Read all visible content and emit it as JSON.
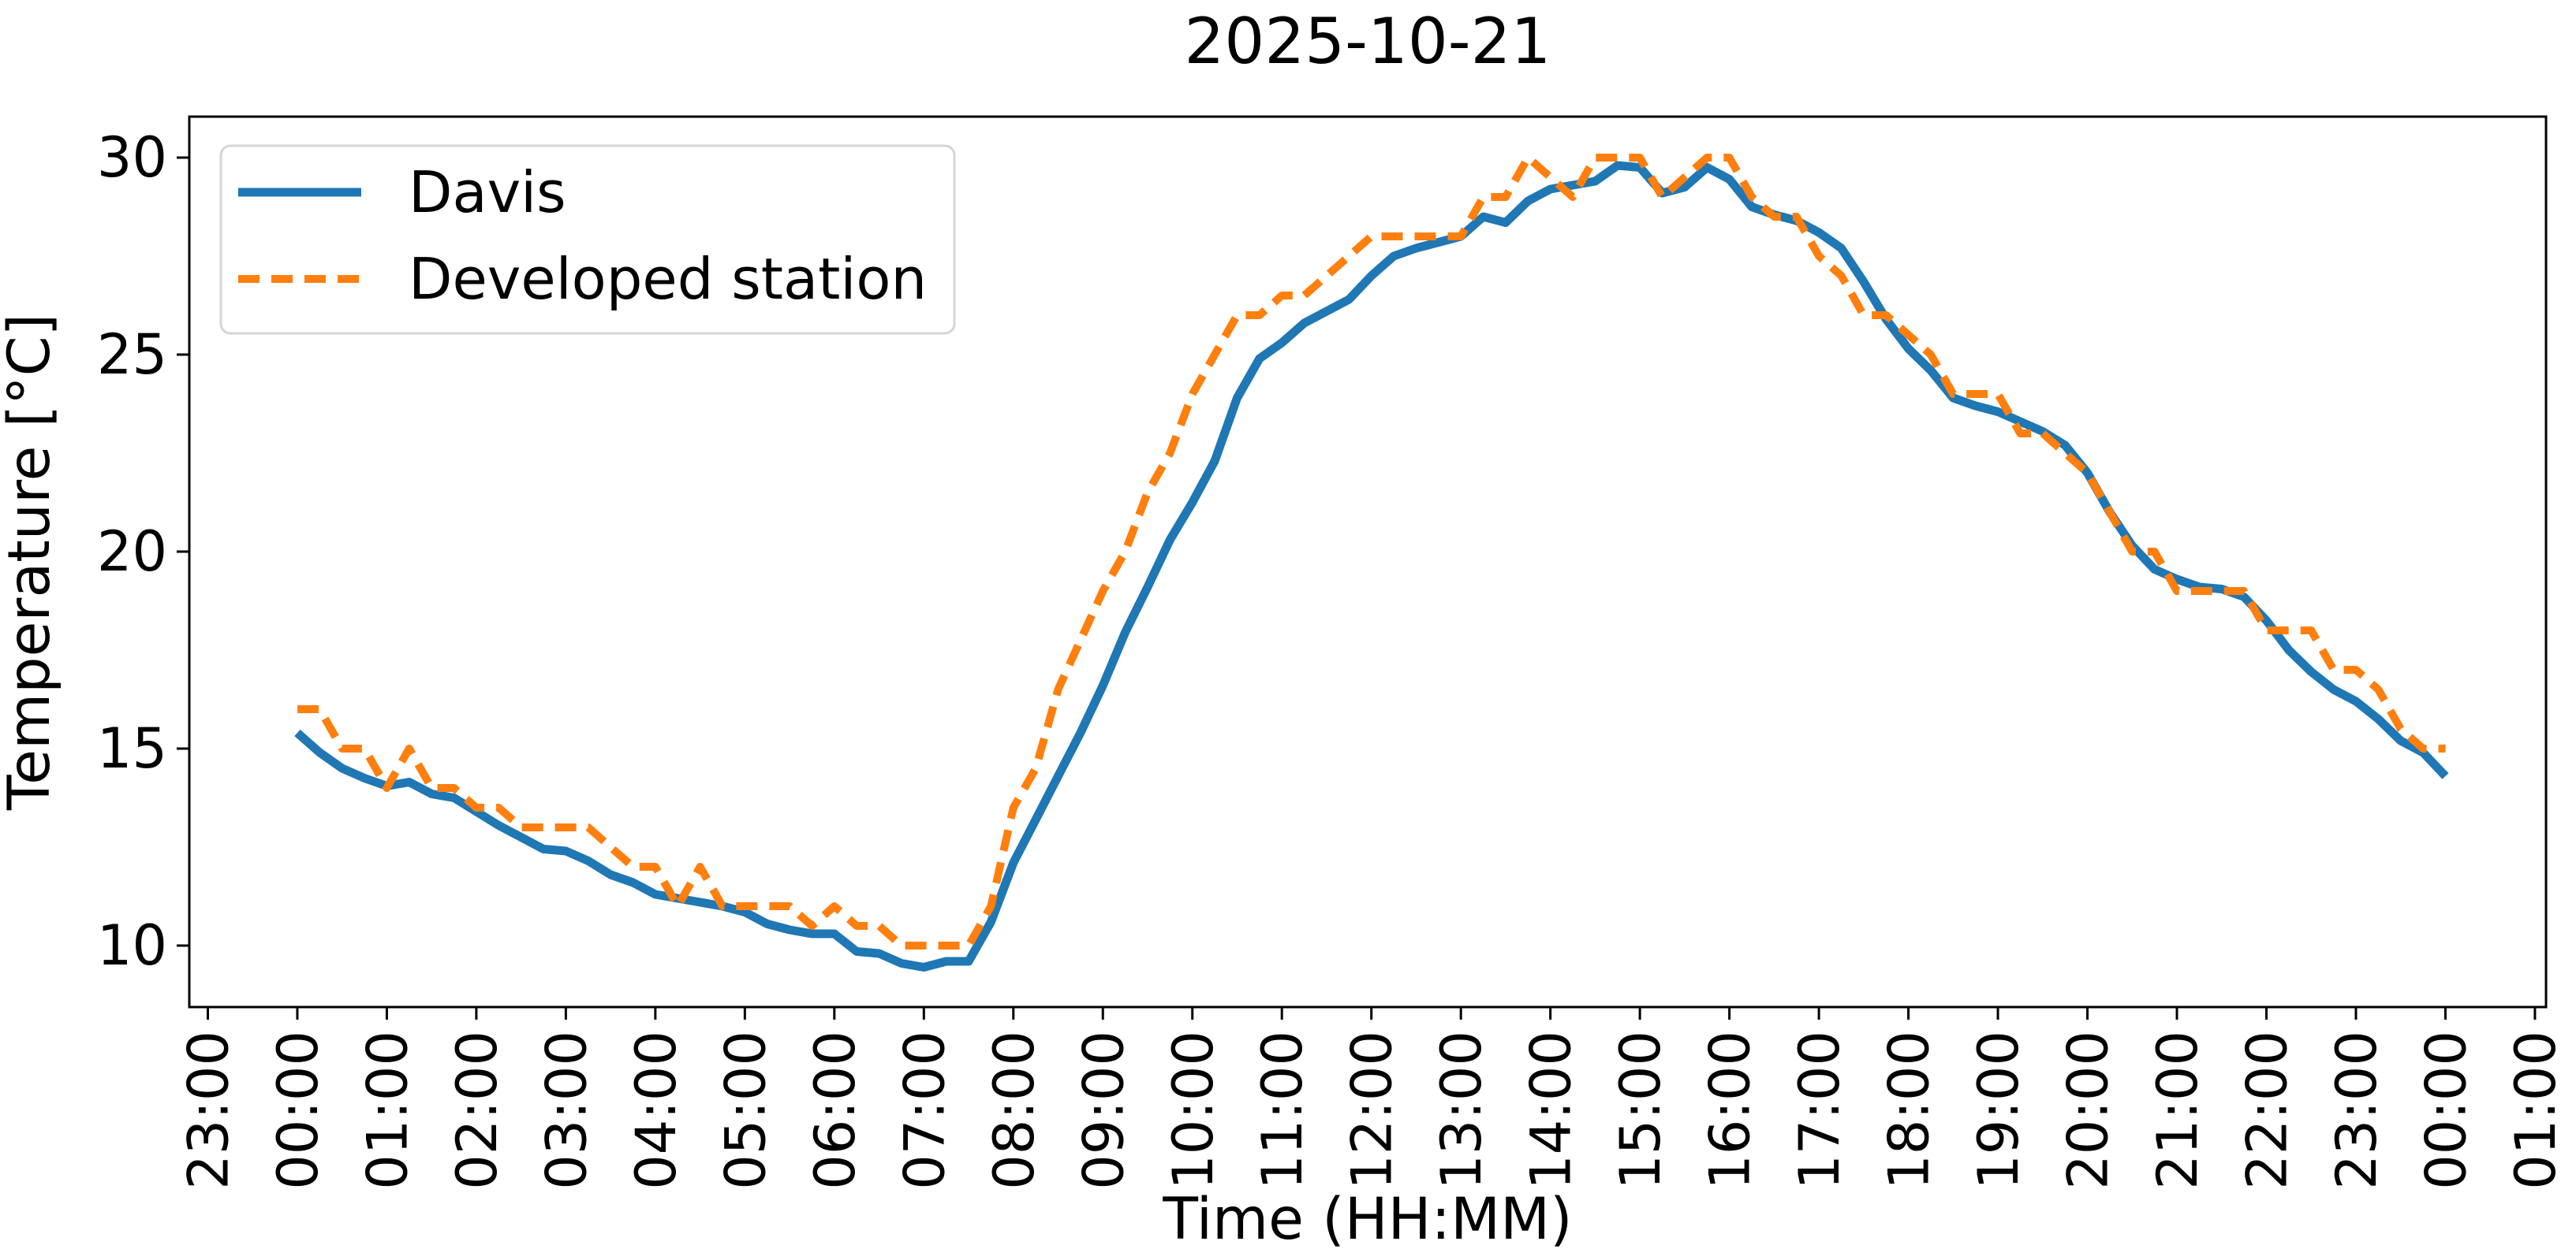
{
  "figure": {
    "title": "2025-10-21"
  },
  "chart_data": {
    "type": "line",
    "title": "2025-10-21",
    "xlabel": "Time (HH:MM)",
    "ylabel": "Temperature [°C]",
    "grid": false,
    "legend_position": "upper-left",
    "x_unit": "hours_since_midnight_00:00",
    "xlim": [
      -1.207,
      25.124
    ],
    "ylim": [
      8.44,
      31.04
    ],
    "y_ticks": [
      10,
      15,
      20,
      25,
      30
    ],
    "x_tick_hours": [
      -1,
      0,
      1,
      2,
      3,
      4,
      5,
      6,
      7,
      8,
      9,
      10,
      11,
      12,
      13,
      14,
      15,
      16,
      17,
      18,
      19,
      20,
      21,
      22,
      23,
      24,
      25
    ],
    "x_tick_labels": [
      "23:00",
      "00:00",
      "01:00",
      "02:00",
      "03:00",
      "04:00",
      "05:00",
      "06:00",
      "07:00",
      "08:00",
      "09:00",
      "10:00",
      "11:00",
      "12:00",
      "13:00",
      "14:00",
      "15:00",
      "16:00",
      "17:00",
      "18:00",
      "19:00",
      "20:00",
      "21:00",
      "22:00",
      "23:00",
      "00:00",
      "01:00"
    ],
    "series": [
      {
        "name": "Davis",
        "color": "#1f77b4",
        "style": "solid",
        "line_width": 11,
        "points": [
          [
            0,
            15.4
          ],
          [
            0.25,
            14.9
          ],
          [
            0.5,
            14.5
          ],
          [
            0.75,
            14.25
          ],
          [
            1,
            14.05
          ],
          [
            1.25,
            14.15
          ],
          [
            1.5,
            13.85
          ],
          [
            1.75,
            13.75
          ],
          [
            2,
            13.4
          ],
          [
            2.25,
            13.05
          ],
          [
            2.5,
            12.75
          ],
          [
            2.75,
            12.45
          ],
          [
            3,
            12.4
          ],
          [
            3.25,
            12.15
          ],
          [
            3.5,
            11.8
          ],
          [
            3.75,
            11.6
          ],
          [
            4,
            11.3
          ],
          [
            4.25,
            11.2
          ],
          [
            4.5,
            11.1
          ],
          [
            4.75,
            11.0
          ],
          [
            5,
            10.85
          ],
          [
            5.25,
            10.55
          ],
          [
            5.5,
            10.4
          ],
          [
            5.75,
            10.3
          ],
          [
            6,
            10.3
          ],
          [
            6.25,
            9.85
          ],
          [
            6.5,
            9.8
          ],
          [
            6.75,
            9.55
          ],
          [
            7,
            9.45
          ],
          [
            7.25,
            9.6
          ],
          [
            7.5,
            9.6
          ],
          [
            7.75,
            10.6
          ],
          [
            8,
            12.1
          ],
          [
            8.25,
            13.2
          ],
          [
            8.5,
            14.3
          ],
          [
            8.75,
            15.4
          ],
          [
            9,
            16.6
          ],
          [
            9.25,
            17.95
          ],
          [
            9.5,
            19.1
          ],
          [
            9.75,
            20.3
          ],
          [
            10,
            21.25
          ],
          [
            10.25,
            22.3
          ],
          [
            10.5,
            23.9
          ],
          [
            10.75,
            24.9
          ],
          [
            11,
            25.3
          ],
          [
            11.25,
            25.8
          ],
          [
            11.5,
            26.1
          ],
          [
            11.75,
            26.4
          ],
          [
            12,
            27.0
          ],
          [
            12.25,
            27.5
          ],
          [
            12.5,
            27.7
          ],
          [
            12.75,
            27.85
          ],
          [
            13,
            28.0
          ],
          [
            13.25,
            28.5
          ],
          [
            13.5,
            28.35
          ],
          [
            13.75,
            28.9
          ],
          [
            14,
            29.2
          ],
          [
            14.25,
            29.3
          ],
          [
            14.5,
            29.4
          ],
          [
            14.75,
            29.8
          ],
          [
            15,
            29.75
          ],
          [
            15.25,
            29.1
          ],
          [
            15.5,
            29.25
          ],
          [
            15.75,
            29.75
          ],
          [
            16,
            29.45
          ],
          [
            16.25,
            28.75
          ],
          [
            16.5,
            28.55
          ],
          [
            16.75,
            28.4
          ],
          [
            17,
            28.1
          ],
          [
            17.25,
            27.7
          ],
          [
            17.5,
            26.85
          ],
          [
            17.75,
            25.9
          ],
          [
            18,
            25.15
          ],
          [
            18.25,
            24.6
          ],
          [
            18.5,
            23.9
          ],
          [
            18.75,
            23.7
          ],
          [
            19,
            23.55
          ],
          [
            19.25,
            23.3
          ],
          [
            19.5,
            23.05
          ],
          [
            19.75,
            22.7
          ],
          [
            20,
            22.0
          ],
          [
            20.25,
            21.0
          ],
          [
            20.5,
            20.15
          ],
          [
            20.75,
            19.55
          ],
          [
            21,
            19.3
          ],
          [
            21.25,
            19.1
          ],
          [
            21.5,
            19.05
          ],
          [
            21.75,
            18.85
          ],
          [
            22,
            18.25
          ],
          [
            22.25,
            17.5
          ],
          [
            22.5,
            16.95
          ],
          [
            22.75,
            16.5
          ],
          [
            23,
            16.2
          ],
          [
            23.25,
            15.75
          ],
          [
            23.5,
            15.2
          ],
          [
            23.75,
            14.9
          ],
          [
            24,
            14.3
          ]
        ]
      },
      {
        "name": "Developed station",
        "color": "#ff7f0e",
        "style": "dashed",
        "line_width": 10,
        "points": [
          [
            0,
            16
          ],
          [
            0.25,
            16
          ],
          [
            0.5,
            15
          ],
          [
            0.75,
            15
          ],
          [
            1,
            14
          ],
          [
            1.25,
            15
          ],
          [
            1.5,
            14
          ],
          [
            1.75,
            14
          ],
          [
            2,
            13.5
          ],
          [
            2.25,
            13.5
          ],
          [
            2.5,
            13
          ],
          [
            2.75,
            13
          ],
          [
            3,
            13
          ],
          [
            3.25,
            13
          ],
          [
            3.5,
            12.5
          ],
          [
            3.75,
            12
          ],
          [
            4,
            12
          ],
          [
            4.25,
            11
          ],
          [
            4.5,
            12
          ],
          [
            4.75,
            11
          ],
          [
            5,
            11
          ],
          [
            5.25,
            11
          ],
          [
            5.5,
            11
          ],
          [
            5.75,
            10.5
          ],
          [
            6,
            11
          ],
          [
            6.25,
            10.5
          ],
          [
            6.5,
            10.5
          ],
          [
            6.75,
            10
          ],
          [
            7,
            10
          ],
          [
            7.25,
            10
          ],
          [
            7.5,
            10
          ],
          [
            7.75,
            11
          ],
          [
            8,
            13.5
          ],
          [
            8.25,
            14.5
          ],
          [
            8.5,
            16.5
          ],
          [
            8.75,
            17.75
          ],
          [
            9,
            19
          ],
          [
            9.25,
            20
          ],
          [
            9.5,
            21.5
          ],
          [
            9.75,
            22.5
          ],
          [
            10,
            24
          ],
          [
            10.25,
            25
          ],
          [
            10.5,
            26
          ],
          [
            10.75,
            26
          ],
          [
            11,
            26.5
          ],
          [
            11.25,
            26.5
          ],
          [
            11.5,
            27
          ],
          [
            11.75,
            27.5
          ],
          [
            12,
            28
          ],
          [
            12.25,
            28
          ],
          [
            12.5,
            28
          ],
          [
            12.75,
            28
          ],
          [
            13,
            28
          ],
          [
            13.25,
            29
          ],
          [
            13.5,
            29
          ],
          [
            13.75,
            30
          ],
          [
            14,
            29.5
          ],
          [
            14.25,
            29
          ],
          [
            14.5,
            30
          ],
          [
            14.75,
            30
          ],
          [
            15,
            30
          ],
          [
            15.25,
            29
          ],
          [
            15.5,
            29.5
          ],
          [
            15.75,
            30
          ],
          [
            16,
            30
          ],
          [
            16.25,
            29
          ],
          [
            16.5,
            28.5
          ],
          [
            16.75,
            28.5
          ],
          [
            17,
            27.5
          ],
          [
            17.25,
            27
          ],
          [
            17.5,
            26
          ],
          [
            17.75,
            26
          ],
          [
            18,
            25.5
          ],
          [
            18.25,
            25
          ],
          [
            18.5,
            24
          ],
          [
            18.75,
            24
          ],
          [
            19,
            24
          ],
          [
            19.25,
            23
          ],
          [
            19.5,
            23
          ],
          [
            19.75,
            22.5
          ],
          [
            20,
            22
          ],
          [
            20.25,
            21
          ],
          [
            20.5,
            20
          ],
          [
            20.75,
            20
          ],
          [
            21,
            19
          ],
          [
            21.25,
            19
          ],
          [
            21.5,
            19
          ],
          [
            21.75,
            19
          ],
          [
            22,
            18
          ],
          [
            22.25,
            18
          ],
          [
            22.5,
            18
          ],
          [
            22.75,
            17
          ],
          [
            23,
            17
          ],
          [
            23.25,
            16.5
          ],
          [
            23.5,
            15.5
          ],
          [
            23.75,
            15
          ],
          [
            24,
            15
          ]
        ]
      }
    ]
  }
}
